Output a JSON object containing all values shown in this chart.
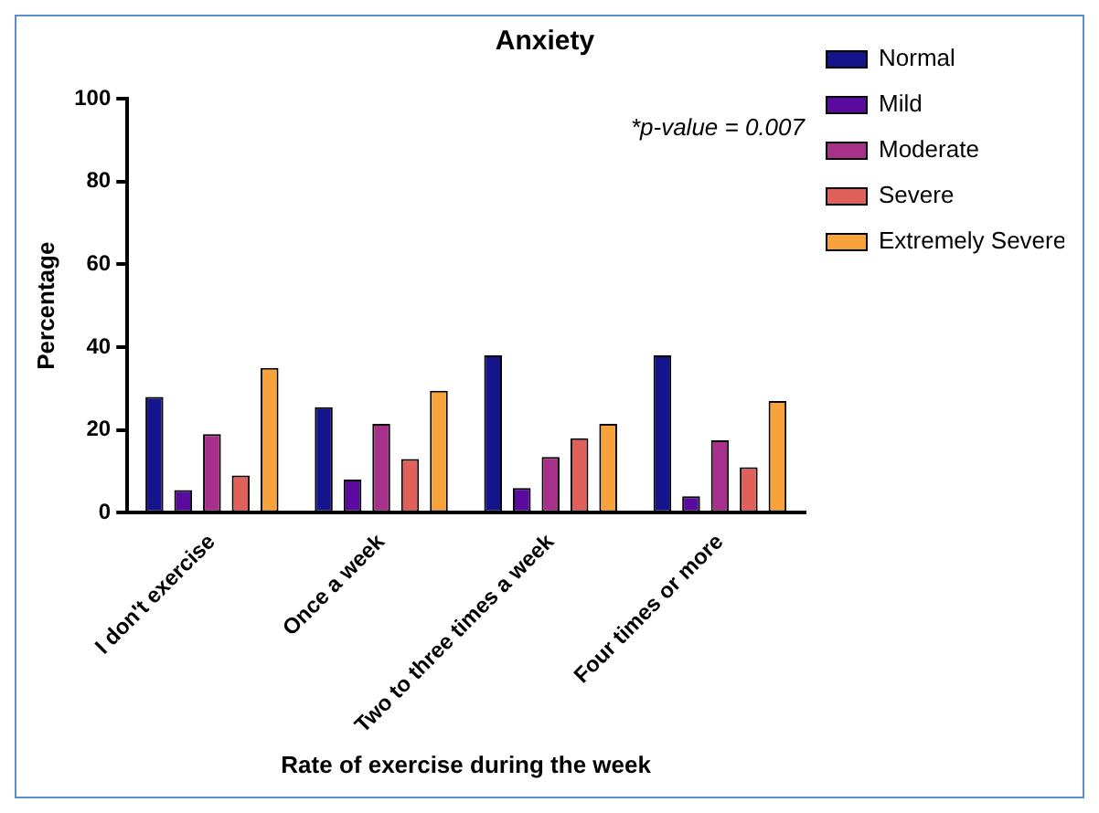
{
  "chart_data": {
    "type": "bar",
    "title": "Anxiety",
    "xlabel": "Rate of exercise during the week",
    "ylabel": "Percentage",
    "categories": [
      "I don't exercise",
      "Once a week",
      "Two to three times a week",
      "Four times or more"
    ],
    "series": [
      {
        "name": "Normal",
        "color": "#14148c",
        "values": [
          28,
          25.5,
          38,
          38
        ]
      },
      {
        "name": "Mild",
        "color": "#5a0a9c",
        "values": [
          5.5,
          8,
          6,
          4
        ]
      },
      {
        "name": "Moderate",
        "color": "#a6308a",
        "values": [
          19,
          21.5,
          13.5,
          17.5
        ]
      },
      {
        "name": "Severe",
        "color": "#e0605a",
        "values": [
          9,
          13,
          18,
          11
        ]
      },
      {
        "name": "Extremely Severe",
        "color": "#f8a23c",
        "values": [
          35,
          29.5,
          21.5,
          27
        ]
      }
    ],
    "ylim": [
      0,
      100
    ],
    "yticks": [
      0,
      20,
      40,
      60,
      80,
      100
    ],
    "grid": false,
    "legend": "right",
    "annotations": [
      "*p-value = 0.007"
    ]
  }
}
